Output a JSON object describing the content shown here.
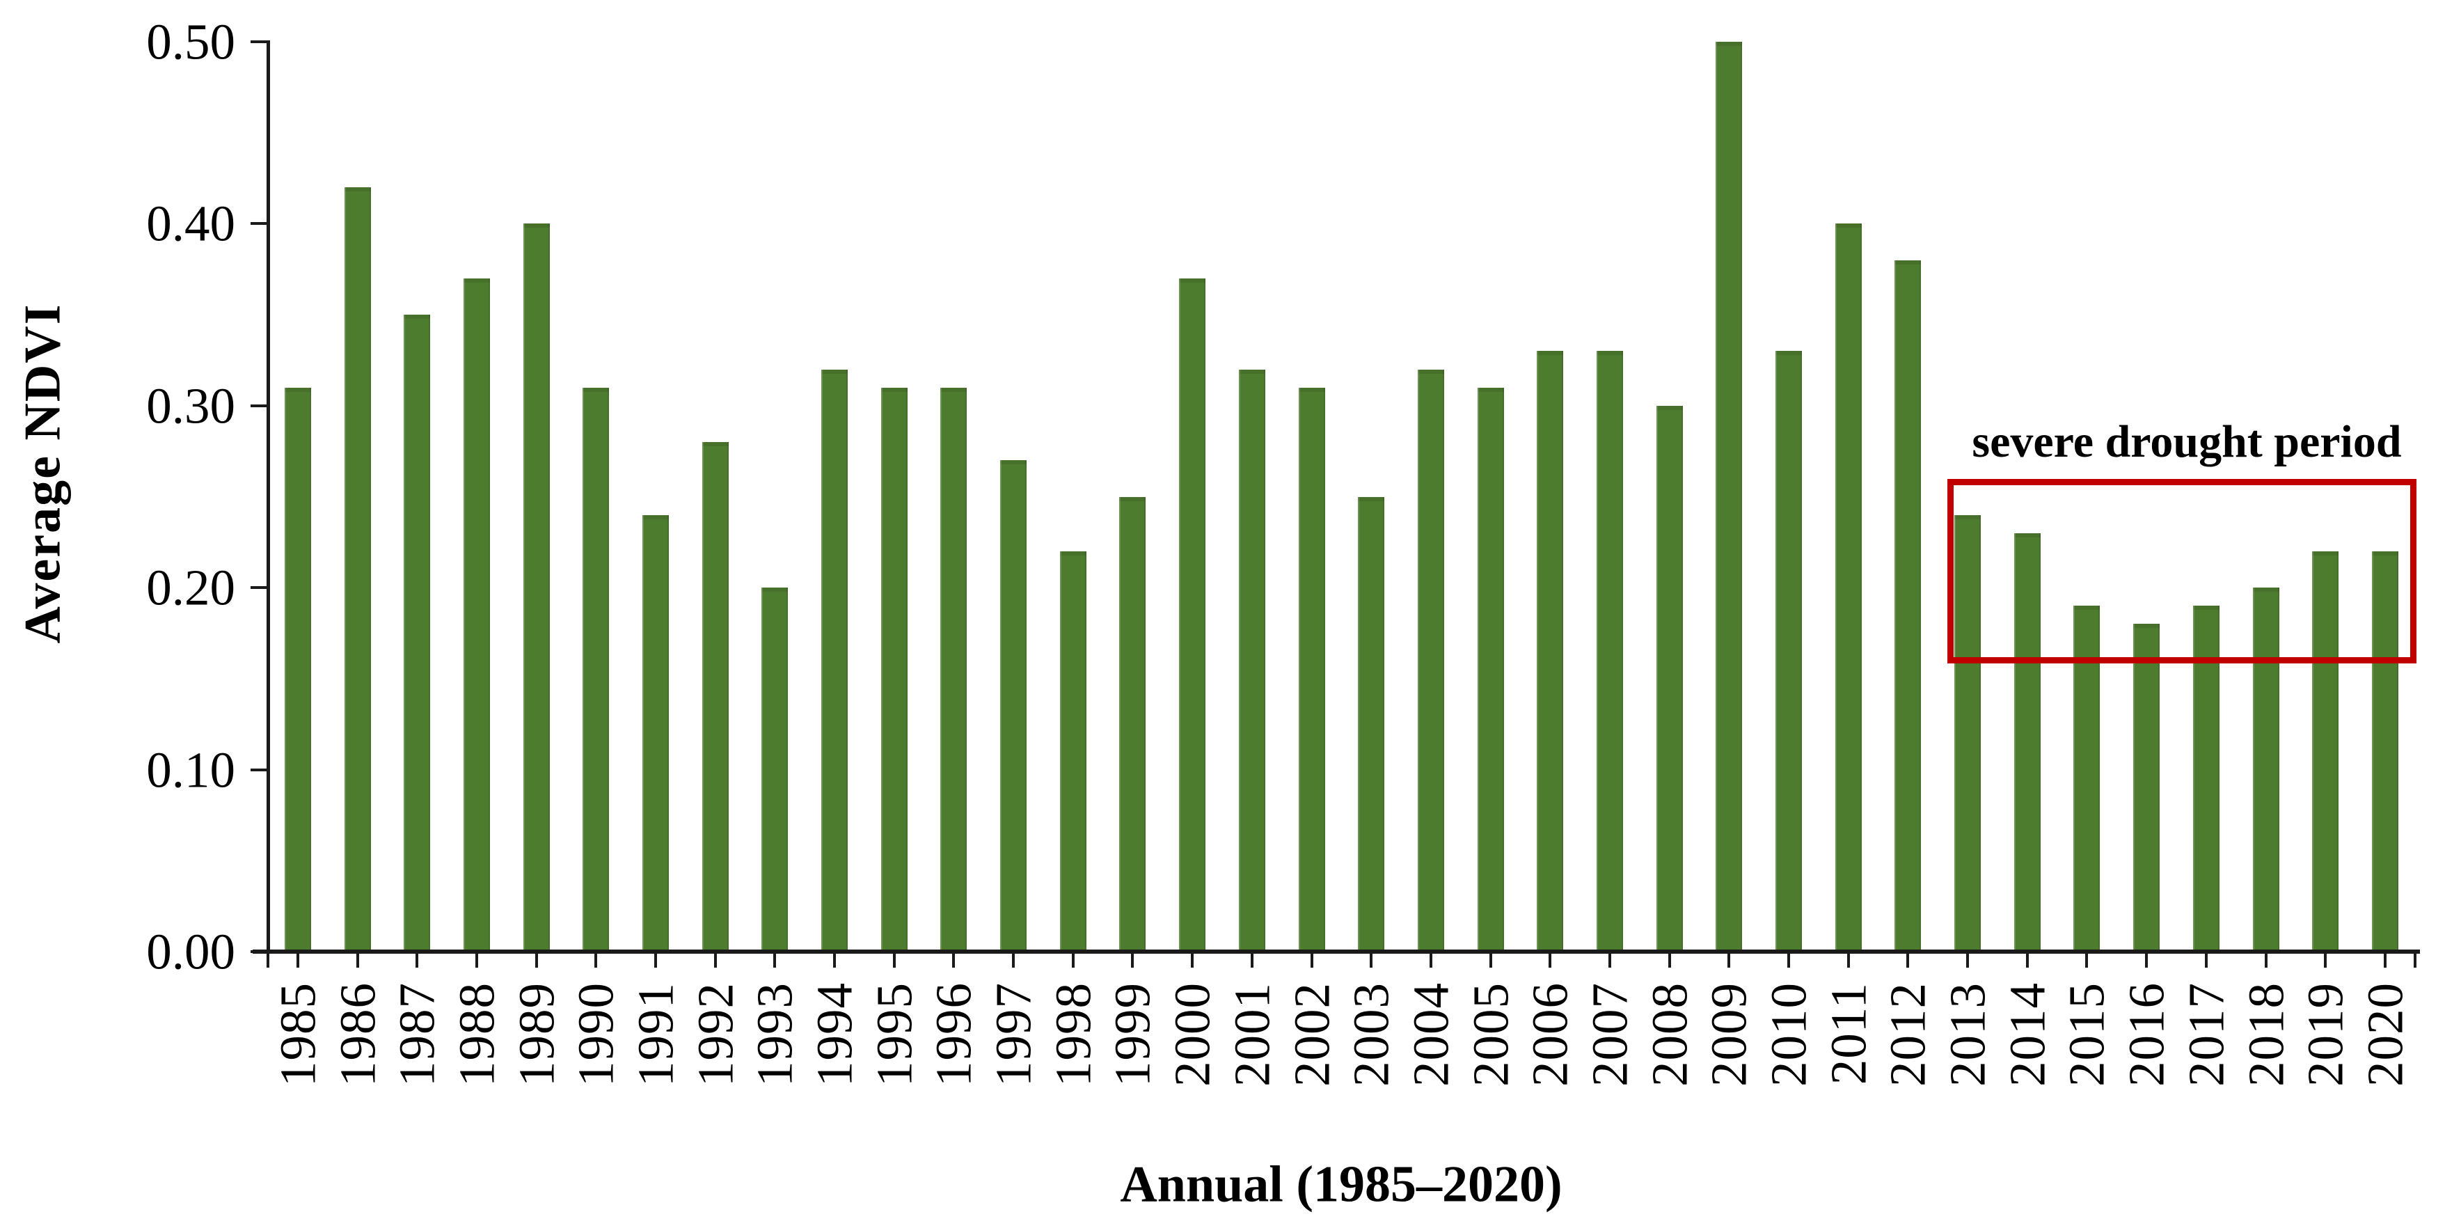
{
  "figure": {
    "background_color": "#ffffff",
    "bar_color": "#4e7c2e",
    "axis_color": "#1a1a1a",
    "annotation_box_color": "#c00000"
  },
  "chart_data": {
    "type": "bar",
    "title": "",
    "xlabel": "Annual (1985–2020)",
    "ylabel": "Average NDVI",
    "ylim": [
      0,
      0.5
    ],
    "ytick_labels": [
      "0.00",
      "0.10",
      "0.20",
      "0.30",
      "0.40",
      "0.50"
    ],
    "ytick_values": [
      0,
      0.1,
      0.2,
      0.3,
      0.4,
      0.5
    ],
    "grid": false,
    "legend_position": "none",
    "categories": [
      "1985",
      "1986",
      "1987",
      "1988",
      "1989",
      "1990",
      "1991",
      "1992",
      "1993",
      "1994",
      "1995",
      "1996",
      "1997",
      "1998",
      "1999",
      "2000",
      "2001",
      "2002",
      "2003",
      "2004",
      "2005",
      "2006",
      "2007",
      "2008",
      "2009",
      "2010",
      "2011",
      "2012",
      "2013",
      "2014",
      "2015",
      "2016",
      "2017",
      "2018",
      "2019",
      "2020"
    ],
    "values": [
      0.31,
      0.42,
      0.35,
      0.37,
      0.4,
      0.31,
      0.24,
      0.28,
      0.2,
      0.32,
      0.31,
      0.31,
      0.27,
      0.22,
      0.25,
      0.37,
      0.32,
      0.31,
      0.25,
      0.32,
      0.31,
      0.33,
      0.33,
      0.3,
      0.5,
      0.33,
      0.4,
      0.38,
      0.24,
      0.23,
      0.19,
      0.18,
      0.19,
      0.2,
      0.22,
      0.22
    ],
    "annotation": {
      "text": "severe drought period",
      "applies_to_years": [
        "2013",
        "2014",
        "2015",
        "2016",
        "2017",
        "2018",
        "2019",
        "2020"
      ],
      "box_value_range": [
        0.165,
        0.26
      ]
    }
  }
}
